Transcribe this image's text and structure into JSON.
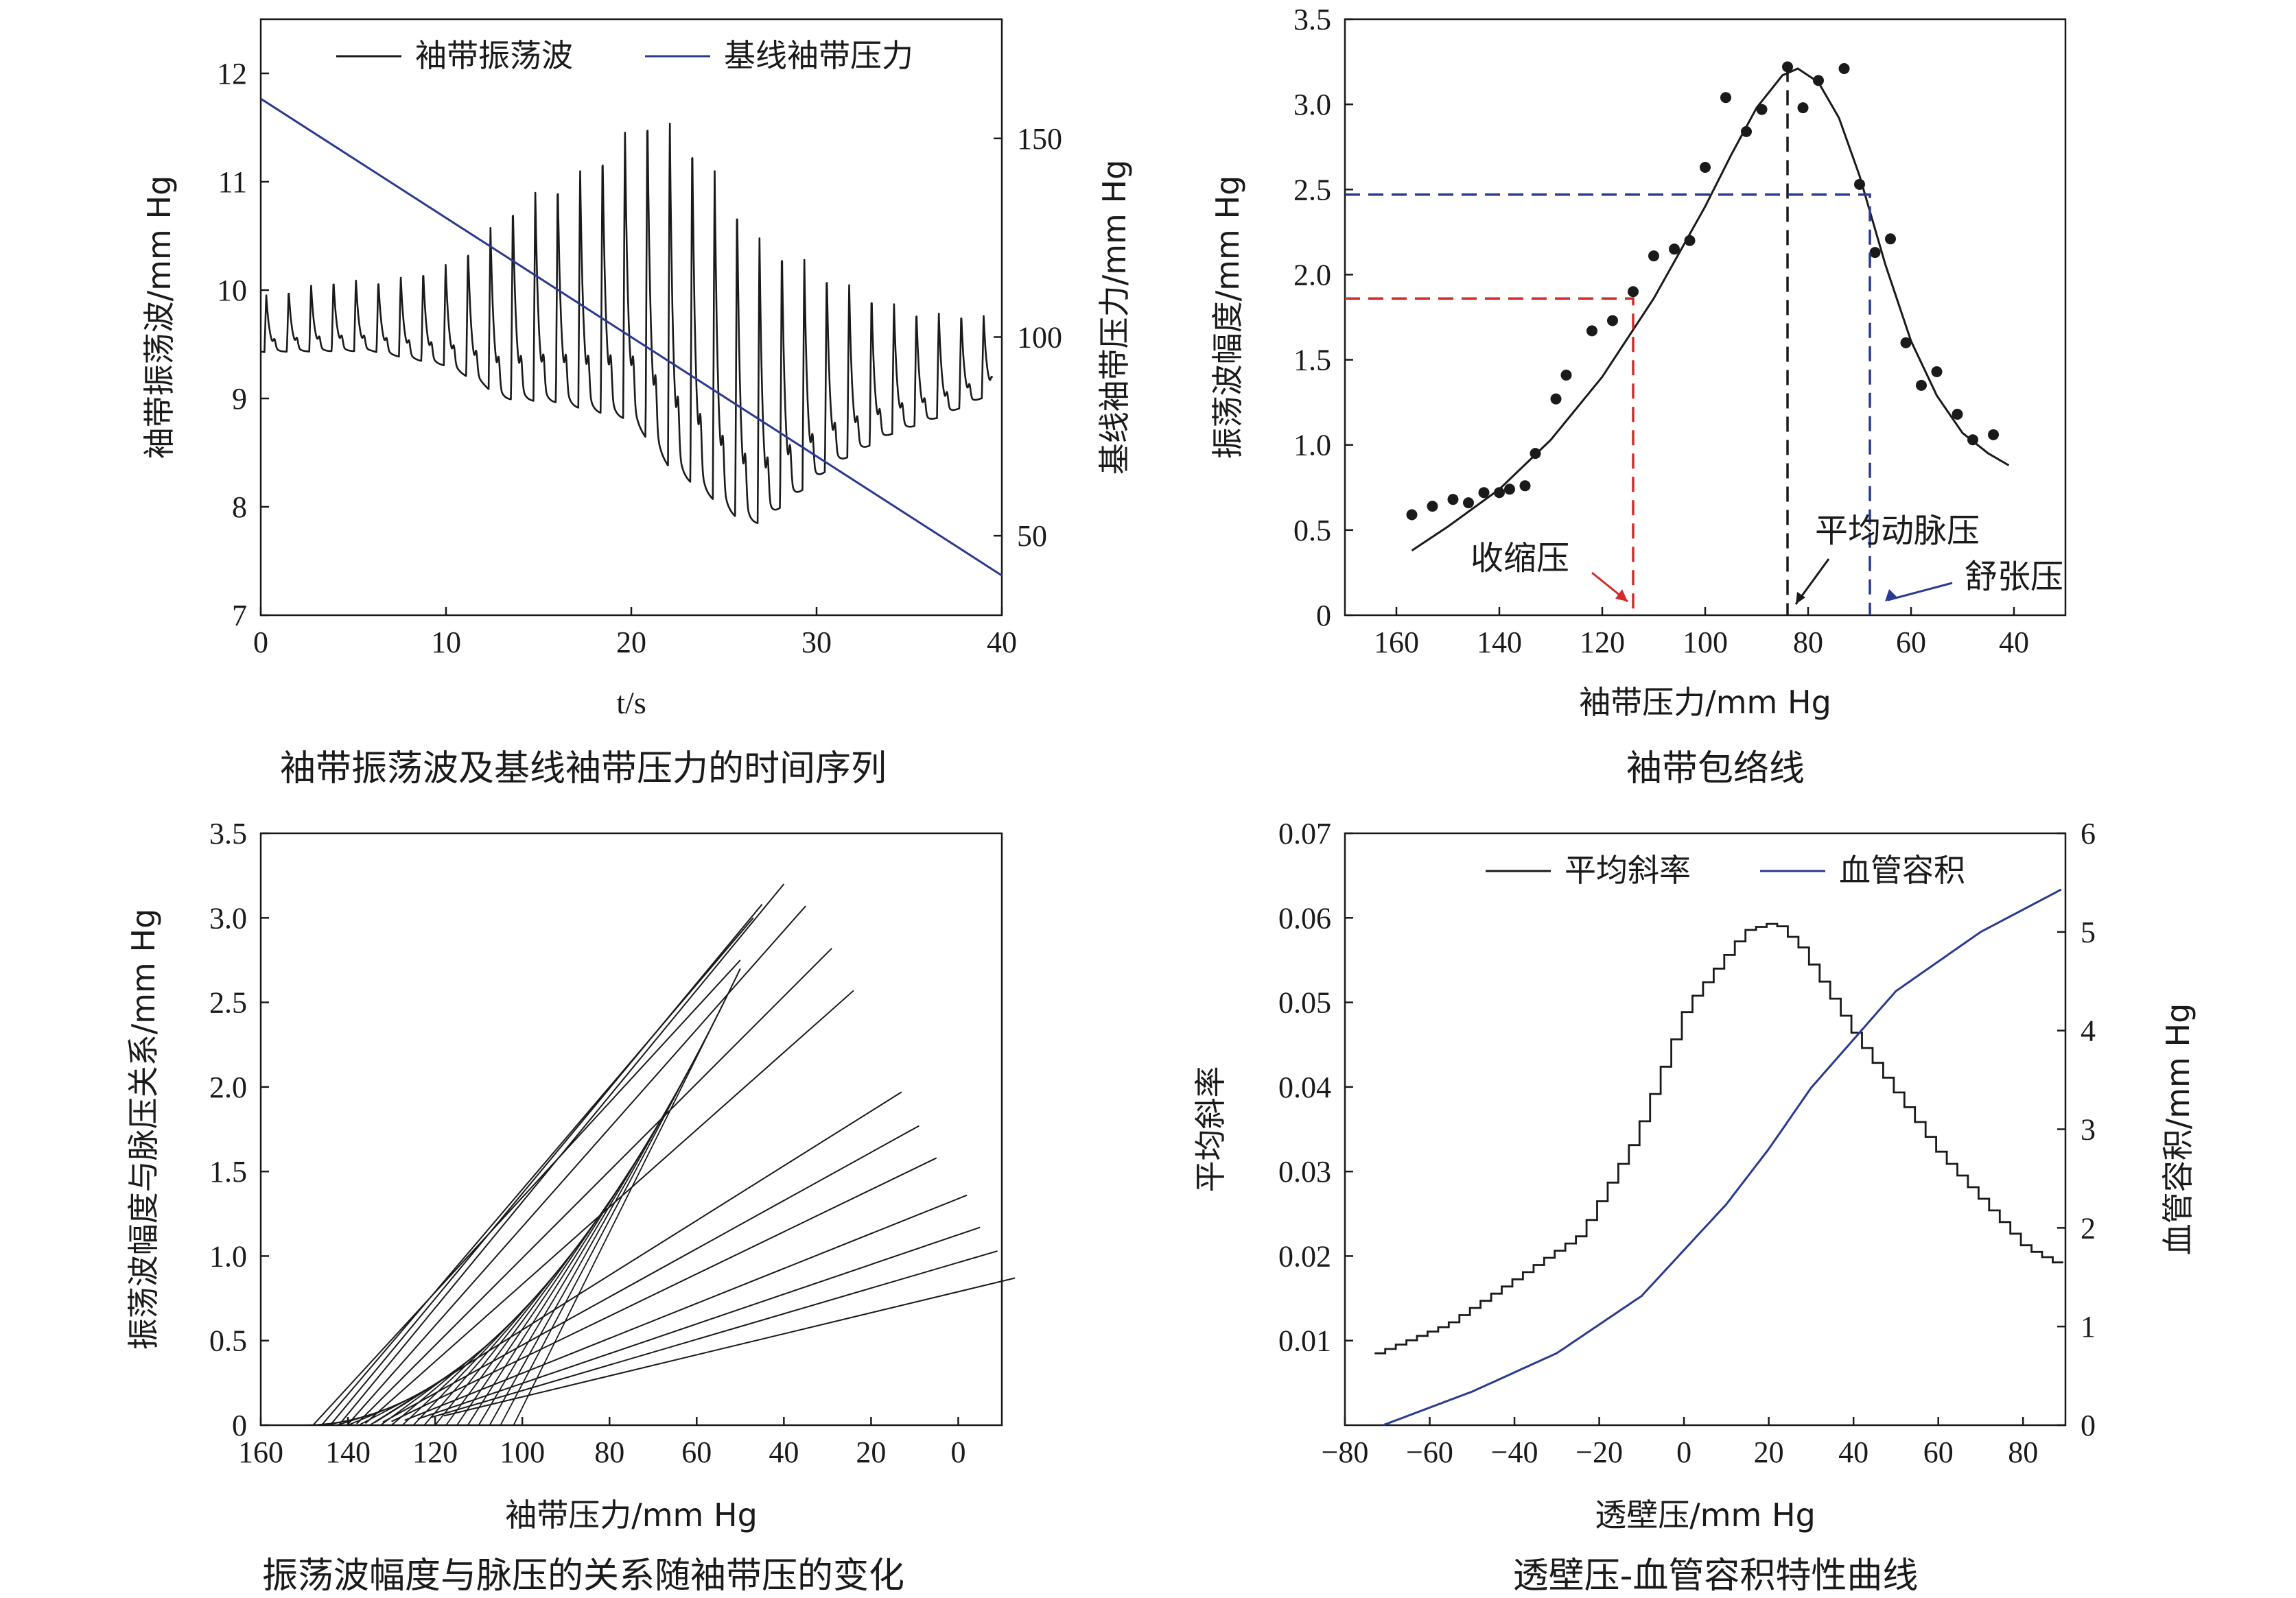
{
  "captions": [
    "袖带振荡波及基线袖带压力的时间序列",
    "袖带包络线",
    "振荡波幅度与脉压的关系随袖带压的变化",
    "透壁压-血管容积特性曲线"
  ],
  "colors": {
    "black": "#1a1a1a",
    "blue": "#2a3a8f",
    "red": "#d42a2a",
    "navy": "#2a3a8f"
  },
  "chart_data": [
    {
      "type": "line",
      "xlabel": "t/s",
      "ylabel": "袖带振荡波/mm Hg",
      "ylabel_right": "基线袖带压力/mm Hg",
      "xlim": [
        0,
        40
      ],
      "ylim": [
        7,
        12.5
      ],
      "ylim_right": [
        30,
        180
      ],
      "xticks": [
        0,
        10,
        20,
        30,
        40
      ],
      "yticks": [
        7,
        8,
        9,
        10,
        11,
        12
      ],
      "yticks_right": [
        50,
        100,
        150
      ],
      "legend": "top",
      "series": [
        {
          "name": "袖带振荡波",
          "color": "#1a1a1a",
          "axis": "left",
          "beat_period": 1.21,
          "first_beat": 0.2,
          "baseline": [
            [
              0,
              9.4
            ],
            [
              6,
              9.4
            ],
            [
              10,
              9.25
            ],
            [
              12,
              9.05
            ],
            [
              13,
              8.9
            ],
            [
              16,
              8.85
            ],
            [
              20,
              8.65
            ],
            [
              22,
              8.2
            ],
            [
              24,
              7.95
            ],
            [
              26,
              7.7
            ],
            [
              27,
              7.7
            ],
            [
              29,
              8.0
            ],
            [
              31,
              8.3
            ],
            [
              34,
              8.6
            ],
            [
              37,
              8.8
            ],
            [
              40,
              9.05
            ]
          ],
          "peaks": [
            [
              0,
              9.95
            ],
            [
              4,
              10.1
            ],
            [
              7,
              10.1
            ],
            [
              10,
              10.25
            ],
            [
              12,
              10.5
            ],
            [
              13,
              10.75
            ],
            [
              15,
              10.95
            ],
            [
              17,
              11.1
            ],
            [
              19,
              11.4
            ],
            [
              20,
              11.55
            ],
            [
              21,
              11.7
            ],
            [
              22,
              11.6
            ],
            [
              23,
              11.5
            ],
            [
              24,
              11.3
            ],
            [
              25,
              11.0
            ],
            [
              26,
              10.8
            ],
            [
              27,
              10.5
            ],
            [
              28,
              10.45
            ],
            [
              30,
              10.25
            ],
            [
              32,
              10.05
            ],
            [
              34,
              9.9
            ],
            [
              36,
              9.8
            ],
            [
              38,
              9.8
            ],
            [
              40,
              9.75
            ]
          ]
        },
        {
          "name": "基线袖带压力",
          "color": "#2a3a8f",
          "axis": "right",
          "x": [
            0,
            40
          ],
          "y": [
            160,
            40
          ]
        }
      ]
    },
    {
      "type": "scatter",
      "xlabel": "袖带压力/mm Hg",
      "ylabel": "振荡波幅度/mm Hg",
      "xlim": [
        170,
        30
      ],
      "ylim": [
        0,
        3.5
      ],
      "xticks": [
        160,
        140,
        120,
        100,
        80,
        60,
        40
      ],
      "yticks": [
        0,
        0.5,
        1.0,
        1.5,
        2.0,
        2.5,
        3.0,
        3.5
      ],
      "points": [
        [
          157,
          0.59
        ],
        [
          153,
          0.64
        ],
        [
          149,
          0.68
        ],
        [
          146,
          0.66
        ],
        [
          143,
          0.72
        ],
        [
          140,
          0.72
        ],
        [
          138,
          0.74
        ],
        [
          135,
          0.76
        ],
        [
          133,
          0.95
        ],
        [
          129,
          1.27
        ],
        [
          127,
          1.41
        ],
        [
          122,
          1.67
        ],
        [
          118,
          1.73
        ],
        [
          114,
          1.9
        ],
        [
          110,
          2.11
        ],
        [
          106,
          2.15
        ],
        [
          103,
          2.2
        ],
        [
          100,
          2.63
        ],
        [
          96,
          3.04
        ],
        [
          92,
          2.84
        ],
        [
          89,
          2.97
        ],
        [
          84,
          3.22
        ],
        [
          81,
          2.98
        ],
        [
          78,
          3.14
        ],
        [
          73,
          3.21
        ],
        [
          70,
          2.53
        ],
        [
          67,
          2.13
        ],
        [
          64,
          2.21
        ],
        [
          61,
          1.6
        ],
        [
          58,
          1.35
        ],
        [
          55,
          1.43
        ],
        [
          51,
          1.18
        ],
        [
          48,
          1.03
        ],
        [
          44,
          1.06
        ]
      ],
      "fit_curve": [
        [
          157,
          0.38
        ],
        [
          150,
          0.52
        ],
        [
          140,
          0.74
        ],
        [
          130,
          1.03
        ],
        [
          120,
          1.4
        ],
        [
          110,
          1.86
        ],
        [
          100,
          2.4
        ],
        [
          95,
          2.7
        ],
        [
          90,
          2.98
        ],
        [
          85,
          3.17
        ],
        [
          82,
          3.21
        ],
        [
          78,
          3.13
        ],
        [
          74,
          2.92
        ],
        [
          70,
          2.58
        ],
        [
          65,
          2.06
        ],
        [
          60,
          1.61
        ],
        [
          55,
          1.29
        ],
        [
          50,
          1.07
        ],
        [
          45,
          0.95
        ],
        [
          41,
          0.88
        ]
      ],
      "markers": [
        {
          "label": "收缩压",
          "x": 114,
          "y": 1.86,
          "color": "#d42a2a"
        },
        {
          "label": "平均动脉压",
          "x": 84,
          "y": 3.22,
          "color": "#1a1a1a"
        },
        {
          "label": "舒张压",
          "x": 68,
          "y": 2.47,
          "color": "#2a3a8f"
        }
      ]
    },
    {
      "type": "line",
      "xlabel": "袖带压力/mm Hg",
      "ylabel": "振荡波幅度与脉压关系/mm Hg",
      "xlim": [
        160,
        -10
      ],
      "ylim": [
        0,
        3.5
      ],
      "xticks": [
        160,
        140,
        120,
        100,
        80,
        60,
        40,
        20,
        0
      ],
      "yticks": [
        0,
        0.5,
        1.0,
        1.5,
        2.0,
        2.5,
        3.0,
        3.5
      ],
      "family": {
        "envelope_x0": 150,
        "envelope_xend": 50,
        "envelope_yend": 2.7,
        "tangent_points": [
          54,
          60,
          65,
          70,
          75,
          80,
          85,
          90,
          95,
          100,
          105,
          110,
          115,
          120,
          125,
          130,
          135,
          140
        ],
        "line_end_points": [
          [
            50,
            2.75
          ],
          [
            47,
            3.0
          ],
          [
            45,
            3.08
          ],
          [
            40,
            3.2
          ],
          [
            35,
            3.07
          ],
          [
            29,
            2.82
          ],
          [
            24,
            2.57
          ],
          [
            13,
            1.97
          ],
          [
            9,
            1.77
          ],
          [
            5,
            1.58
          ],
          [
            -2,
            1.36
          ],
          [
            -5,
            1.17
          ],
          [
            -9,
            1.03
          ],
          [
            -13,
            0.87
          ]
        ]
      }
    },
    {
      "type": "line",
      "xlabel": "透壁压/mm Hg",
      "ylabel": "平均斜率",
      "ylabel_right": "血管容积/mm Hg",
      "xlim": [
        -80,
        90
      ],
      "ylim": [
        0,
        0.07
      ],
      "ylim_right": [
        0,
        6
      ],
      "xticks": [
        -80,
        -60,
        -40,
        -20,
        0,
        20,
        40,
        60,
        80
      ],
      "yticks": [
        0.01,
        0.02,
        0.03,
        0.04,
        0.05,
        0.06,
        0.07
      ],
      "yticks_right": [
        0,
        1,
        2,
        3,
        4,
        5,
        6
      ],
      "legend": "top",
      "series": [
        {
          "name": "平均斜率",
          "color": "#1a1a1a",
          "axis": "left",
          "step": true,
          "step_width": 2.5,
          "x": [
            -73,
            -56,
            -25,
            -12,
            0,
            14,
            21,
            27,
            40,
            60,
            80,
            88
          ],
          "y": [
            0.0085,
            0.012,
            0.0225,
            0.034,
            0.0495,
            0.0585,
            0.0595,
            0.0565,
            0.046,
            0.032,
            0.021,
            0.019
          ]
        },
        {
          "name": "血管容积",
          "color": "#2a3a8f",
          "axis": "right",
          "x": [
            -71,
            -50,
            -30,
            -10,
            10,
            20,
            30,
            50,
            70,
            89
          ],
          "y": [
            0,
            0.34,
            0.73,
            1.31,
            2.24,
            2.8,
            3.42,
            4.4,
            5.0,
            5.43
          ]
        }
      ]
    }
  ]
}
